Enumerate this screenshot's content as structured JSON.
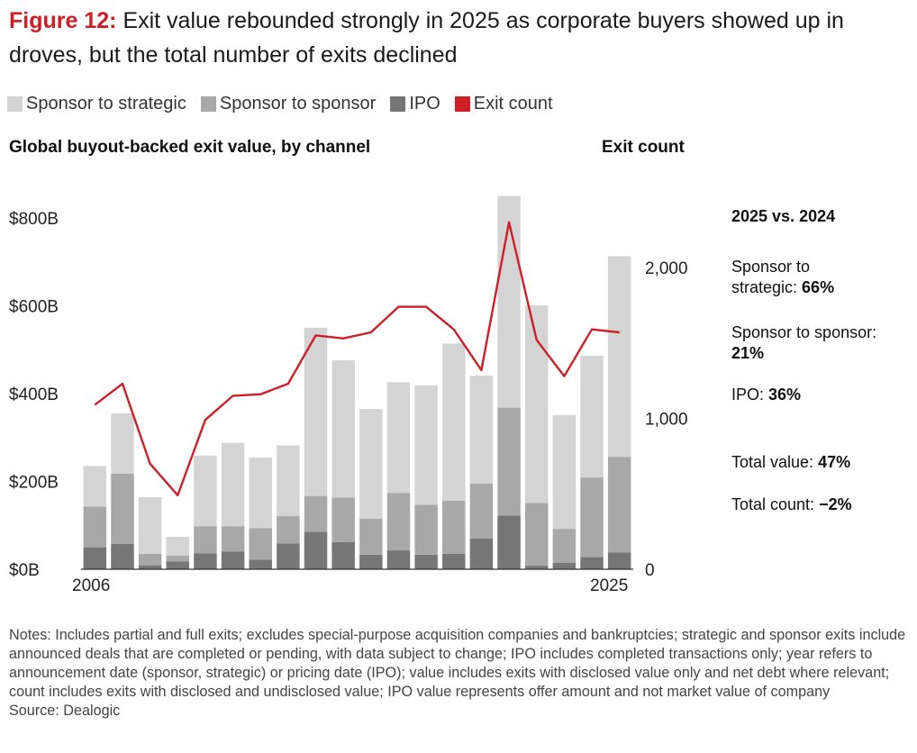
{
  "title": {
    "figure_label": "Figure 12:",
    "text": "Exit value rebounded strongly in 2025 as corporate buyers showed up in droves, but the total number of exits declined"
  },
  "legend": [
    {
      "label": "Sponsor to strategic",
      "color": "#d4d4d4",
      "kind": "swatch"
    },
    {
      "label": "Sponsor to sponsor",
      "color": "#a8a8a8",
      "kind": "swatch"
    },
    {
      "label": "IPO",
      "color": "#767676",
      "kind": "swatch"
    },
    {
      "label": "Exit count",
      "color": "#cc1f26",
      "kind": "line"
    }
  ],
  "subtitle_left": "Global buyout-backed exit value, by channel",
  "subtitle_right": "Exit count",
  "chart_data": {
    "type": "bar",
    "stacked": true,
    "title": "Global buyout-backed exit value, by channel",
    "x": [
      2006,
      2007,
      2008,
      2009,
      2010,
      2011,
      2012,
      2013,
      2014,
      2015,
      2016,
      2017,
      2018,
      2019,
      2020,
      2021,
      2022,
      2023,
      2024,
      2025
    ],
    "x_tick_labels": [
      "2006",
      "2025"
    ],
    "y_left": {
      "label": "",
      "ticks": [
        "$0B",
        "$200B",
        "$400B",
        "$600B",
        "$800B"
      ],
      "tick_values": [
        0,
        200,
        400,
        600,
        800
      ],
      "ylim": [
        0,
        850
      ]
    },
    "y_right": {
      "label": "Exit count",
      "ticks": [
        "0",
        "1,000",
        "2,000"
      ],
      "tick_values": [
        0,
        1000,
        2000
      ],
      "ylim": [
        0,
        2550
      ]
    },
    "series": [
      {
        "name": "IPO",
        "axis": "left",
        "kind": "bar",
        "color": "#767676",
        "values": [
          50,
          58,
          9,
          18,
          36,
          40,
          22,
          59,
          85,
          62,
          33,
          43,
          33,
          35,
          70,
          122,
          8,
          15,
          28,
          38
        ]
      },
      {
        "name": "Sponsor to sponsor",
        "axis": "left",
        "kind": "bar",
        "color": "#a8a8a8",
        "values": [
          93,
          160,
          26,
          13,
          62,
          58,
          72,
          62,
          82,
          101,
          82,
          131,
          114,
          121,
          125,
          246,
          143,
          77,
          181,
          218
        ]
      },
      {
        "name": "Sponsor to strategic",
        "axis": "left",
        "kind": "bar",
        "color": "#d4d4d4",
        "values": [
          92,
          137,
          129,
          43,
          161,
          190,
          160,
          161,
          383,
          313,
          250,
          252,
          272,
          358,
          246,
          482,
          450,
          259,
          277,
          457
        ]
      },
      {
        "name": "Exit count",
        "axis": "right",
        "kind": "line",
        "color": "#cc1f26",
        "values": [
          1090,
          1230,
          700,
          490,
          990,
          1150,
          1160,
          1230,
          1550,
          1530,
          1570,
          1740,
          1740,
          1590,
          1320,
          2300,
          1520,
          1280,
          1590,
          1570
        ]
      }
    ]
  },
  "panel": {
    "heading": "2025 vs. 2024",
    "stats": [
      {
        "label": "Sponsor to strategic:",
        "value": "66%"
      },
      {
        "label": "Sponsor to sponsor:",
        "value": "21%"
      },
      {
        "label": "IPO:",
        "value": "36%"
      },
      {
        "label": "Total value:",
        "value": "47%"
      },
      {
        "label": "Total count:",
        "value": "−2%"
      }
    ]
  },
  "notes": "Notes: Includes partial and full exits; excludes special-purpose acquisition companies and bankruptcies; strategic and sponsor exits include announced deals that are completed or pending, with data subject to change; IPO includes completed transactions only; year refers to announcement date (sponsor, strategic) or pricing date (IPO); value includes exits with disclosed value only and net debt where relevant; count includes exits with disclosed and undisclosed value; IPO value represents offer amount and not market value of company",
  "source": "Source: Dealogic"
}
